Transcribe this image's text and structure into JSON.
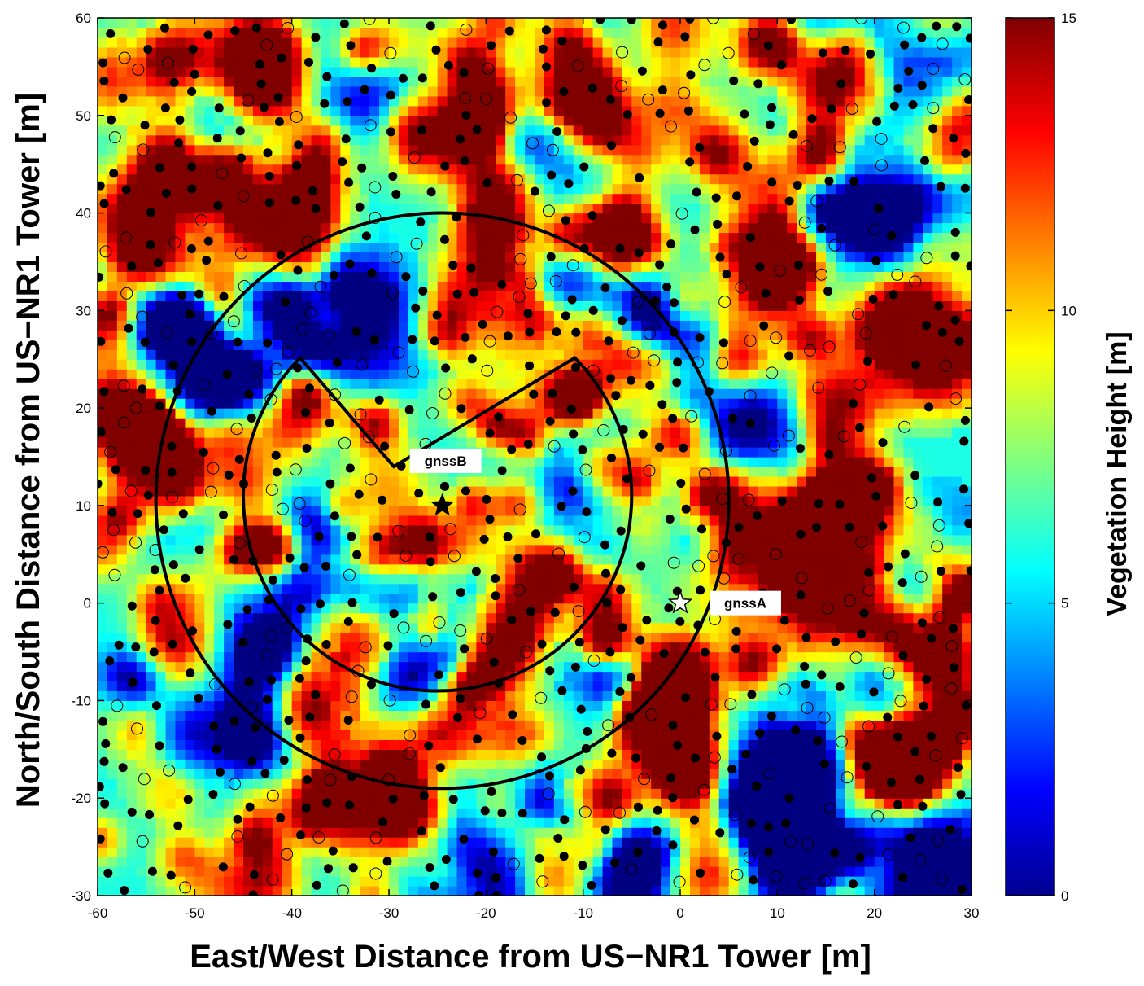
{
  "chart_data": {
    "type": "heatmap",
    "title": "",
    "xlabel": "East/West Distance from US−NR1 Tower [m]",
    "ylabel": "North/South Distance from US−NR1 Tower [m]",
    "xlim": [
      -60,
      30
    ],
    "ylim": [
      -30,
      60
    ],
    "x_ticks": [
      "-60",
      "-50",
      "-40",
      "-30",
      "-20",
      "-10",
      "0",
      "10",
      "20",
      "30"
    ],
    "y_ticks": [
      "-30",
      "-20",
      "-10",
      "0",
      "10",
      "20",
      "30",
      "40",
      "50",
      "60"
    ],
    "grid": false,
    "colorbar": {
      "label": "Vegetation Height  [m]",
      "range": [
        0,
        15
      ],
      "ticks": [
        "0",
        "5",
        "10",
        "15"
      ],
      "colormap": "jet",
      "colors": [
        "#00008f",
        "#0000ff",
        "#00ffff",
        "#ffff00",
        "#ff0000",
        "#800000"
      ]
    },
    "sites": [
      {
        "name": "gnssA",
        "x": 0,
        "y": 0,
        "marker": "open-star"
      },
      {
        "name": "gnssB",
        "x": -24.5,
        "y": 10,
        "marker": "filled-star"
      }
    ],
    "outer_circle": {
      "center": [
        -24.5,
        10.5
      ],
      "radius": 29.5
    },
    "inner_arc": {
      "center": [
        -25.0,
        11.0
      ],
      "radius": 20.0,
      "gap_start_deg": 45,
      "gap_end_deg": 135,
      "apex": [
        -29.5,
        14.0
      ]
    },
    "tree_markers": {
      "filled": "trees (filled dots)",
      "open": "trees (open circles)"
    }
  }
}
